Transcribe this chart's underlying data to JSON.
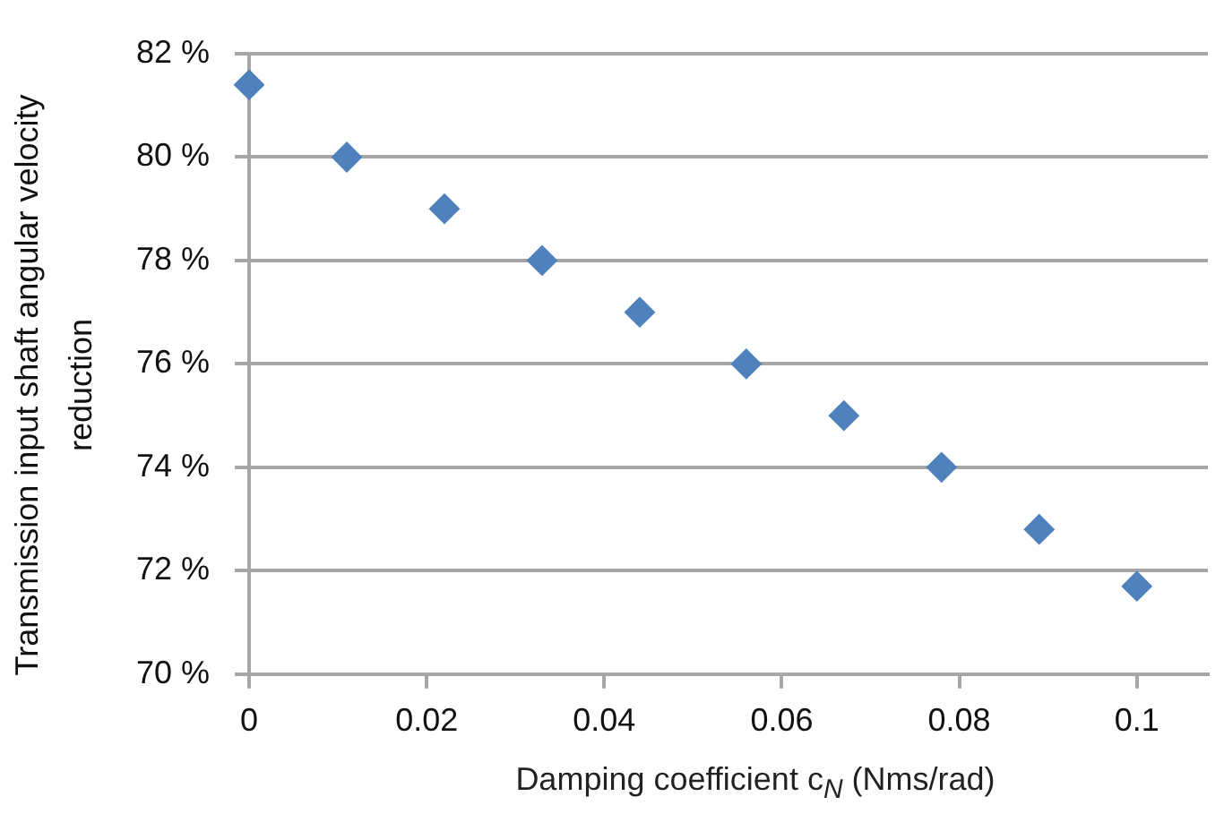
{
  "chart_data": {
    "type": "scatter",
    "xlabel": "Damping coefficient c$_{N}$ (Nms/rad)",
    "ylabel": "Transmission input shaft angular velocity reduction",
    "x": [
      0,
      0.011,
      0.022,
      0.033,
      0.044,
      0.056,
      0.067,
      0.078,
      0.089,
      0.1
    ],
    "series": [
      {
        "color": "#4f81bd",
        "values": [
          81.4,
          80,
          79,
          78,
          77,
          76,
          75,
          74,
          72.8,
          71.7
        ]
      }
    ],
    "xlim": [
      0,
      0.108
    ],
    "xticks": [
      0,
      0.02,
      0.04,
      0.06,
      0.08,
      0.1
    ],
    "ylim": [
      70,
      82
    ],
    "yticks": [
      {
        "value": 70,
        "label": "70 %"
      },
      {
        "value": 72,
        "label": "72 %"
      },
      {
        "value": 74,
        "label": "74 %"
      },
      {
        "value": 76,
        "label": "76 %"
      },
      {
        "value": 78,
        "label": "78 %"
      },
      {
        "value": 80,
        "label": "80 %"
      },
      {
        "value": 82,
        "label": "82 %"
      }
    ],
    "grid": "y",
    "legend": false,
    "marker": "diamond"
  }
}
